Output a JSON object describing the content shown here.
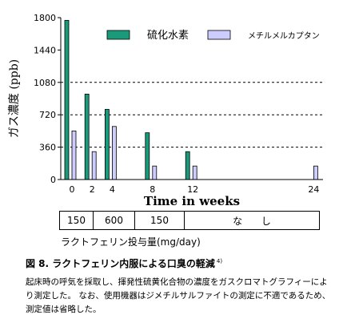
{
  "chart_data": {
    "type": "bar",
    "x_ticks": [
      "0",
      "2",
      "4",
      "8",
      "12",
      "24"
    ],
    "xlabel": "Time in weeks",
    "ylabel": "ガス濃度 (ppb)",
    "yticks": [
      "0",
      "360",
      "720",
      "1080",
      "1440",
      "1800"
    ],
    "ylim": [
      0,
      1800
    ],
    "grid": "dashed horizontal lines at 360, 720, 1080",
    "legend_placement": "top-right",
    "series": [
      {
        "name": "硫化水素",
        "color": "#1a9a7a",
        "x": [
          0,
          2,
          4,
          8,
          12
        ],
        "values": [
          1770,
          950,
          780,
          520,
          310
        ]
      },
      {
        "name": "メチルメルカプタン",
        "color": "#ccccff",
        "x": [
          0,
          2,
          4,
          8,
          12,
          24
        ],
        "values": [
          540,
          310,
          590,
          150,
          150,
          150
        ]
      }
    ]
  },
  "dosing": {
    "cells": [
      "150",
      "600",
      "150",
      "な し"
    ],
    "label": "ラクトフェリン投与量(mg/day)"
  },
  "figure": {
    "title": "図 8. ラクトフェリン内服による口臭の軽減",
    "ref": "4)",
    "caption": "起床時の呼気を採取し、揮発性硫黄化合物の濃度をガスクロマトグラフィーにより測定した。 なお、使用機器はジメチルサルファイトの測定に不適であるため、 測定値は省略した。"
  }
}
